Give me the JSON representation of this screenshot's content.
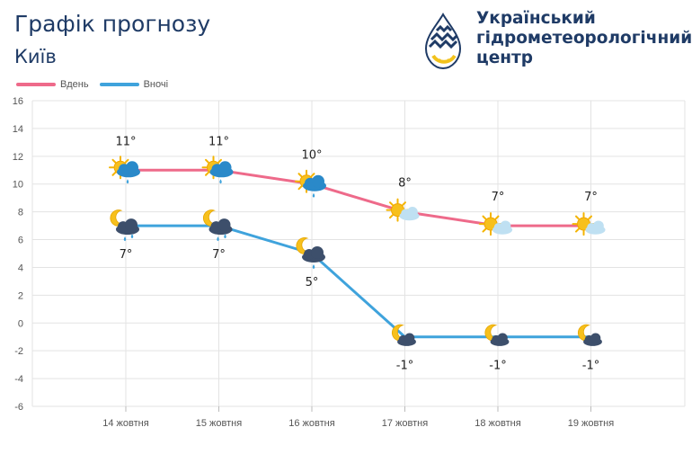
{
  "header": {
    "title": "Графік прогнозу",
    "city": "Київ"
  },
  "organization": {
    "line1": "Український",
    "line2": "гідрометеорологічний",
    "line3": "центр"
  },
  "legend": {
    "day_label": "Вдень",
    "night_label": "Вночі"
  },
  "colors": {
    "day": "#ee6a8a",
    "night": "#3fa3dc",
    "brand": "#1f3b66",
    "grid": "#e3e3e3"
  },
  "chart_data": {
    "type": "line",
    "categories": [
      "14 жовтня",
      "15 жовтня",
      "16 жовтня",
      "17 жовтня",
      "18 жовтня",
      "19 жовтня"
    ],
    "ylim": [
      -6,
      16
    ],
    "yticks": [
      16,
      14,
      12,
      10,
      8,
      6,
      4,
      2,
      0,
      -2,
      -4,
      -6
    ],
    "grid": true,
    "legend_position": "top-left",
    "series": [
      {
        "name": "Вдень",
        "values": [
          11,
          11,
          10,
          8,
          7,
          7
        ],
        "labels": [
          "11°",
          "11°",
          "10°",
          "8°",
          "7°",
          "7°"
        ],
        "icons": [
          "sun-cloud-rain-icon",
          "sun-cloud-rain-icon",
          "sun-cloud-rain-icon",
          "sun-cloud-icon",
          "sun-cloud-icon",
          "sun-cloud-icon"
        ]
      },
      {
        "name": "Вночі",
        "values": [
          7,
          7,
          5,
          -1,
          -1,
          -1
        ],
        "labels": [
          "7°",
          "7°",
          "5°",
          "-1°",
          "-1°",
          "-1°"
        ],
        "icons": [
          "moon-cloud-rain-icon",
          "moon-cloud-rain-icon",
          "moon-cloud-rain-icon",
          "moon-cloud-icon",
          "moon-cloud-icon",
          "moon-cloud-icon"
        ]
      }
    ]
  }
}
